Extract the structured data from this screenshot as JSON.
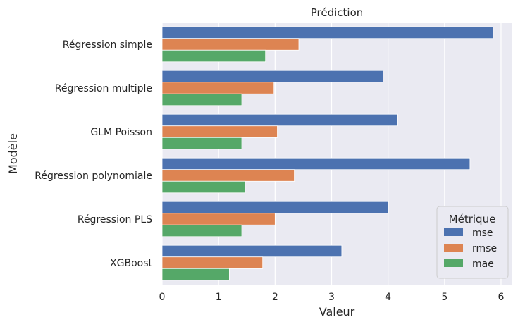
{
  "chart_data": {
    "type": "bar",
    "orientation": "horizontal",
    "title": "Prédiction",
    "xlabel": "Valeur",
    "ylabel": "Modèle",
    "xlim": [
      0,
      6.2
    ],
    "xticks": [
      "0",
      "1",
      "2",
      "3",
      "4",
      "5",
      "6"
    ],
    "grid": true,
    "categories": [
      "Régression simple",
      "Régression multiple",
      "GLM Poisson",
      "Régression polynomiale",
      "Régression PLS",
      "XGBoost"
    ],
    "series": [
      {
        "name": "mse",
        "color": "#4c72b0",
        "values": [
          5.86,
          3.91,
          4.17,
          5.45,
          4.01,
          3.18
        ]
      },
      {
        "name": "rmse",
        "color": "#dd8452",
        "values": [
          2.42,
          1.98,
          2.04,
          2.34,
          2.0,
          1.78
        ]
      },
      {
        "name": "mae",
        "color": "#55a868",
        "values": [
          1.83,
          1.41,
          1.41,
          1.47,
          1.41,
          1.19
        ]
      }
    ],
    "legend": {
      "title": "Métrique",
      "position": "bottom-right"
    }
  }
}
